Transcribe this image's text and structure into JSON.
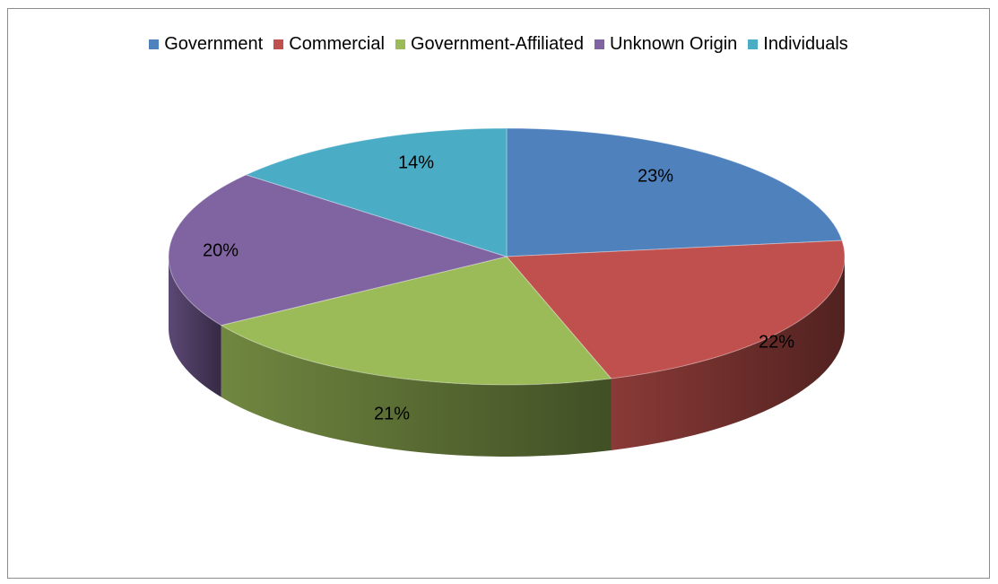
{
  "chart_data": {
    "type": "pie",
    "title": "",
    "legend_position": "top",
    "categories": [
      "Government",
      "Commercial",
      "Government-Affiliated",
      "Unknown Origin",
      "Individuals"
    ],
    "values": [
      23,
      22,
      21,
      20,
      14
    ],
    "labels": [
      "23%",
      "22%",
      "21%",
      "20%",
      "14%"
    ],
    "colors": [
      "#4f81bd",
      "#c0504d",
      "#9bbb59",
      "#8064a2",
      "#4bacc6"
    ],
    "style": "3d"
  }
}
